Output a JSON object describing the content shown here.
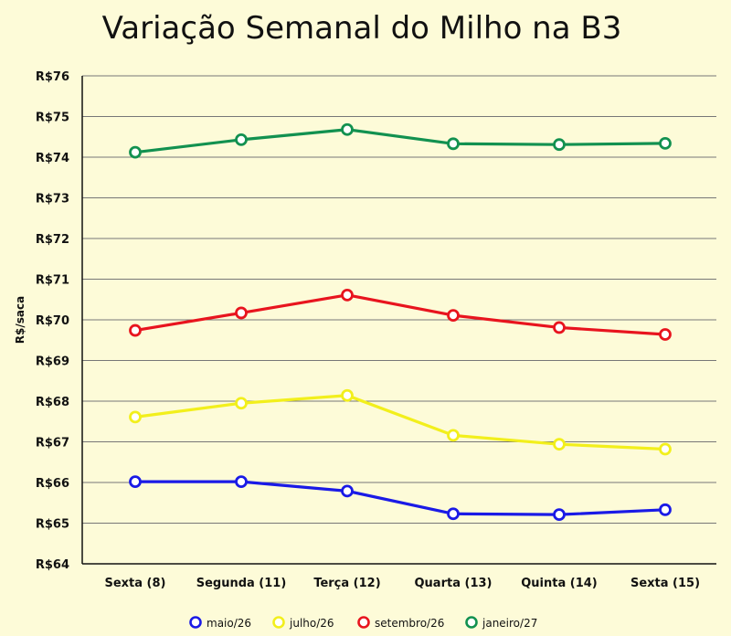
{
  "chart_data": {
    "type": "line",
    "title": "Variação Semanal do Milho na B3",
    "ylabel": "R$/saca",
    "xlabel": "",
    "categories": [
      "Sexta (8)",
      "Segunda (11)",
      "Terça (12)",
      "Quarta (13)",
      "Quinta (14)",
      "Sexta (15)"
    ],
    "ylim": [
      64,
      76
    ],
    "yticks": [
      64,
      65,
      66,
      67,
      68,
      69,
      70,
      71,
      72,
      73,
      74,
      75,
      76
    ],
    "ytick_labels": [
      "R$64",
      "R$65",
      "R$66",
      "R$67",
      "R$68",
      "R$69",
      "R$70",
      "R$71",
      "R$72",
      "R$73",
      "R$74",
      "R$75",
      "R$76"
    ],
    "grid": true,
    "legend_position": "bottom",
    "series": [
      {
        "name": "maio/26",
        "color": "#1a1ae6",
        "values": [
          66.02,
          66.02,
          65.79,
          65.23,
          65.21,
          65.33
        ]
      },
      {
        "name": "julho/26",
        "color": "#f2ef1c",
        "values": [
          67.61,
          67.95,
          68.14,
          67.16,
          66.94,
          66.82
        ]
      },
      {
        "name": "setembro/26",
        "color": "#e8141e",
        "values": [
          69.74,
          70.17,
          70.61,
          70.11,
          69.81,
          69.64
        ]
      },
      {
        "name": "janeiro/27",
        "color": "#129150",
        "values": [
          74.12,
          74.43,
          74.68,
          74.33,
          74.31,
          74.34
        ]
      }
    ]
  }
}
